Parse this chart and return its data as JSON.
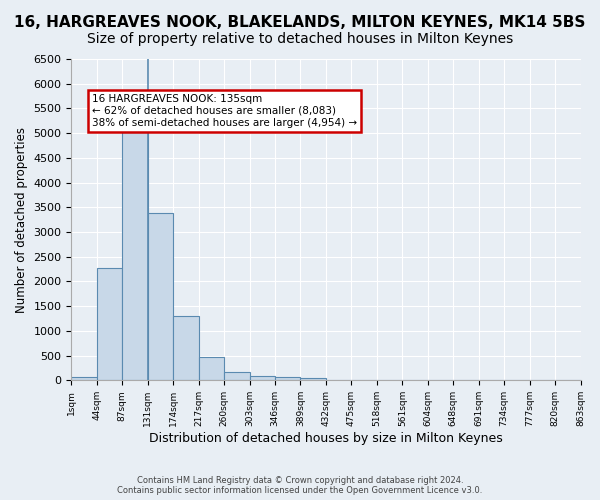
{
  "title": "16, HARGREAVES NOOK, BLAKELANDS, MILTON KEYNES, MK14 5BS",
  "subtitle": "Size of property relative to detached houses in Milton Keynes",
  "xlabel": "Distribution of detached houses by size in Milton Keynes",
  "ylabel": "Number of detached properties",
  "footer_line1": "Contains HM Land Registry data © Crown copyright and database right 2024.",
  "footer_line2": "Contains public sector information licensed under the Open Government Licence v3.0.",
  "bin_labels": [
    "1sqm",
    "44sqm",
    "87sqm",
    "131sqm",
    "174sqm",
    "217sqm",
    "260sqm",
    "303sqm",
    "346sqm",
    "389sqm",
    "432sqm",
    "475sqm",
    "518sqm",
    "561sqm",
    "604sqm",
    "648sqm",
    "691sqm",
    "734sqm",
    "777sqm",
    "820sqm",
    "863sqm"
  ],
  "bar_values": [
    60,
    2280,
    5430,
    3390,
    1300,
    480,
    165,
    95,
    60,
    40,
    10,
    5,
    0,
    0,
    0,
    0,
    0,
    0,
    0,
    0
  ],
  "bar_color": "#c8d8e8",
  "bar_edge_color": "#5a8ab0",
  "subject_bin_index": 3,
  "annotation_line1": "16 HARGREAVES NOOK: 135sqm",
  "annotation_line2": "← 62% of detached houses are smaller (8,083)",
  "annotation_line3": "38% of semi-detached houses are larger (4,954) →",
  "annotation_box_color": "#ffffff",
  "annotation_box_edge": "#cc0000",
  "ylim": [
    0,
    6500
  ],
  "yticks": [
    0,
    500,
    1000,
    1500,
    2000,
    2500,
    3000,
    3500,
    4000,
    4500,
    5000,
    5500,
    6000,
    6500
  ],
  "bg_color": "#e8eef4",
  "grid_color": "#ffffff",
  "title_fontsize": 11,
  "subtitle_fontsize": 10
}
